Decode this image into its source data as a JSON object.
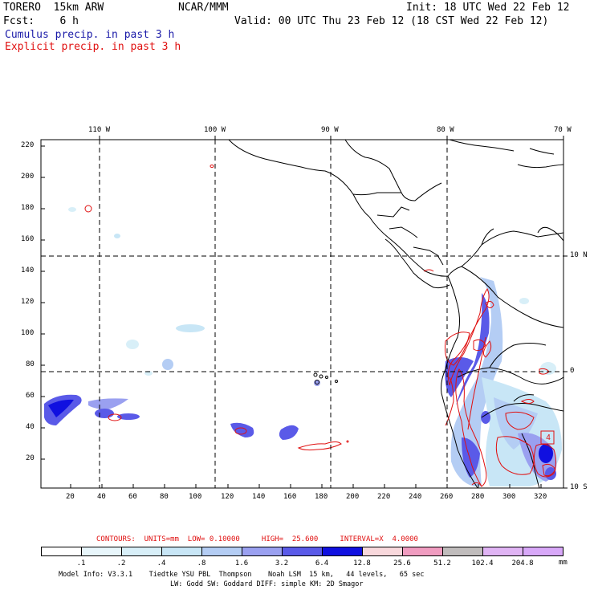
{
  "header": {
    "model": "TORERO  15km ARW",
    "org": "NCAR/MMM",
    "init": "Init: 18 UTC Wed 22 Feb 12",
    "fcst": "Fcst:    6 h",
    "valid": "Valid: 00 UTC Thu 23 Feb 12 (18 CST Wed 22 Feb 12)",
    "cumulus": "Cumulus precip. in past 3 h",
    "explicit": "Explicit precip. in past 3 h",
    "cumulus_color": "#1a1aa8",
    "explicit_color": "#e01010"
  },
  "map": {
    "top_labels": [
      "110 W",
      "100 W",
      "90 W",
      "80 W",
      "70 W"
    ],
    "right_labels": [
      "10 N",
      "0",
      "10 S"
    ],
    "y_ticks": [
      "220",
      "200",
      "180",
      "160",
      "140",
      "120",
      "100",
      "80",
      "60",
      "40",
      "20"
    ],
    "x_ticks": [
      "20",
      "40",
      "60",
      "80",
      "100",
      "120",
      "140",
      "160",
      "180",
      "200",
      "220",
      "240",
      "260",
      "280",
      "300",
      "320"
    ]
  },
  "contours_note": {
    "label": "CONTOURS:  UNITS=mm  LOW= 0.10000     HIGH=  25.600     INTERVAL=X  4.0000",
    "units": "mm",
    "low": 0.1,
    "high": 25.6,
    "interval": "X 4.0000"
  },
  "legend": {
    "bins": [
      {
        "label": ".1",
        "color": "#ffffff"
      },
      {
        "label": ".2",
        "color": "#e8f6fb"
      },
      {
        "label": ".4",
        "color": "#d8eff8"
      },
      {
        "label": ".8",
        "color": "#c8e6f6"
      },
      {
        "label": "1.6",
        "color": "#b4cdf4"
      },
      {
        "label": "3.2",
        "color": "#9aa0f0"
      },
      {
        "label": "6.4",
        "color": "#5a5ae8"
      },
      {
        "label": "12.8",
        "color": "#1010e0"
      },
      {
        "label": "25.6",
        "color": "#f8d8dc"
      },
      {
        "label": "51.2",
        "color": "#f09cc0"
      },
      {
        "label": "102.4",
        "color": "#c0bcbc"
      },
      {
        "label": "204.8",
        "color": "#e0b4f4"
      },
      {
        "label": "",
        "color": "#d8a8f8"
      }
    ],
    "units": "mm"
  },
  "footer": {
    "line1": "Model Info: V3.3.1    Tiedtke YSU PBL  Thompson    Noah LSM  15 km,   44 levels,   65 sec",
    "line2": "LW: Godd SW: Goddard DIFF: simple KM: 2D Smagor"
  }
}
